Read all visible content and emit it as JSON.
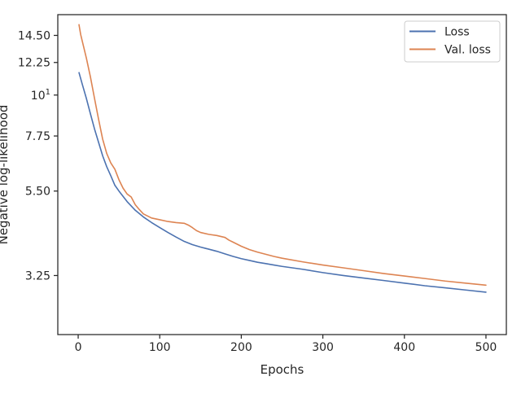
{
  "chart_data": {
    "type": "line",
    "xlabel": "Epochs",
    "ylabel": "Negative log-likelihood",
    "xlim": [
      -25,
      525
    ],
    "ylim": [
      2.25,
      16.5
    ],
    "y_scale": "log",
    "grid": false,
    "legend_placement": "top-right",
    "x_ticks": [
      0,
      100,
      200,
      300,
      400,
      500
    ],
    "x_tick_labels": [
      "0",
      "100",
      "200",
      "300",
      "400",
      "500"
    ],
    "y_ticks": [
      3.25,
      5.5,
      7.75,
      10,
      12.25,
      14.5
    ],
    "y_tick_labels": [
      "3.25",
      "5.50",
      "7.75",
      "10",
      "12.25",
      "14.50"
    ],
    "y_tick_superscripts": [
      "",
      "",
      "",
      "1",
      "",
      ""
    ],
    "series": [
      {
        "name": "Loss",
        "color": "#4c72b0",
        "x": [
          1,
          5,
          10,
          15,
          20,
          25,
          30,
          35,
          40,
          45,
          50,
          60,
          70,
          80,
          90,
          100,
          110,
          120,
          130,
          140,
          150,
          160,
          170,
          180,
          190,
          200,
          210,
          220,
          230,
          240,
          250,
          275,
          300,
          325,
          350,
          375,
          400,
          425,
          450,
          475,
          500
        ],
        "y": [
          11.5,
          10.7,
          9.8,
          8.9,
          8.1,
          7.45,
          6.85,
          6.4,
          6.05,
          5.7,
          5.5,
          5.15,
          4.88,
          4.68,
          4.52,
          4.38,
          4.25,
          4.13,
          4.02,
          3.94,
          3.88,
          3.83,
          3.78,
          3.72,
          3.66,
          3.61,
          3.57,
          3.53,
          3.5,
          3.47,
          3.44,
          3.38,
          3.31,
          3.25,
          3.2,
          3.15,
          3.1,
          3.05,
          3.01,
          2.97,
          2.93
        ]
      },
      {
        "name": "Val. loss",
        "color": "#dd8452",
        "x": [
          1,
          3,
          6,
          10,
          15,
          20,
          25,
          30,
          35,
          40,
          45,
          50,
          55,
          60,
          65,
          70,
          75,
          80,
          90,
          100,
          110,
          120,
          130,
          135,
          140,
          145,
          150,
          160,
          170,
          180,
          185,
          190,
          200,
          210,
          220,
          230,
          240,
          250,
          275,
          300,
          325,
          350,
          375,
          400,
          425,
          450,
          475,
          500
        ],
        "y": [
          15.5,
          14.6,
          13.7,
          12.6,
          11.2,
          9.8,
          8.6,
          7.6,
          6.95,
          6.55,
          6.3,
          5.9,
          5.6,
          5.4,
          5.3,
          5.05,
          4.9,
          4.77,
          4.65,
          4.6,
          4.55,
          4.52,
          4.5,
          4.45,
          4.38,
          4.3,
          4.25,
          4.2,
          4.17,
          4.12,
          4.05,
          4.0,
          3.9,
          3.82,
          3.76,
          3.71,
          3.66,
          3.62,
          3.54,
          3.47,
          3.41,
          3.35,
          3.29,
          3.24,
          3.19,
          3.14,
          3.1,
          3.06
        ]
      }
    ]
  }
}
